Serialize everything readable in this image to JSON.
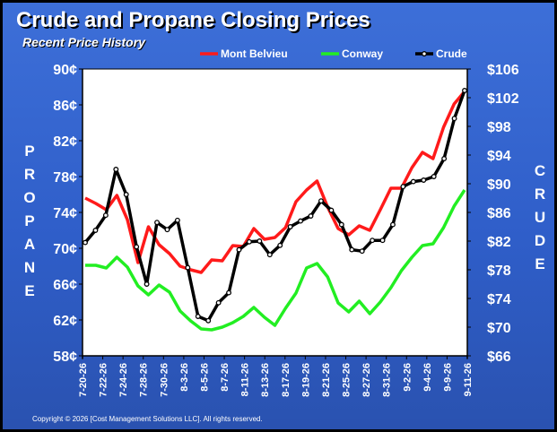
{
  "title": "Crude and Propane Closing Prices",
  "subtitle": "Recent Price History",
  "copyright": "Copyright © 2026 [Cost Management Solutions LLC].  All rights reserved.",
  "colors": {
    "mont_belvieu": "#ff1a1a",
    "conway": "#22ee22",
    "crude": "#000000",
    "plot_bg": "#ffffff",
    "text": "#ffffff"
  },
  "chart_data": {
    "type": "line",
    "left_axis_label": "PROPANE",
    "right_axis_label": "CRUDE",
    "left_ylim": [
      58,
      90
    ],
    "left_yticks": [
      "58¢",
      "62¢",
      "66¢",
      "70¢",
      "74¢",
      "78¢",
      "82¢",
      "86¢",
      "90¢"
    ],
    "right_ylim": [
      66,
      106
    ],
    "right_yticks": [
      "$66",
      "$70",
      "$74",
      "$78",
      "$82",
      "$86",
      "$90",
      "$94",
      "$98",
      "$102",
      "$106"
    ],
    "x_tick_labels": [
      "7-20-26",
      "7-22-26",
      "7-24-26",
      "7-28-26",
      "7-30-26",
      "8-3-26",
      "8-5-26",
      "8-7-26",
      "8-11-26",
      "8-13-26",
      "8-17-26",
      "8-19-26",
      "8-21-26",
      "8-25-26",
      "8-27-26",
      "8-31-26",
      "9-2-26",
      "9-4-26",
      "9-9-26",
      "9-11-26"
    ],
    "legend_position": "top",
    "grid": false,
    "series": [
      {
        "name": "Mont Belvieu",
        "axis": "left",
        "color": "#ff1a1a",
        "values": [
          75.6,
          75.0,
          74.3,
          75.9,
          73.2,
          68.4,
          72.4,
          70.4,
          69.4,
          68.0,
          67.6,
          67.3,
          68.7,
          68.6,
          70.3,
          70.2,
          72.2,
          71.0,
          71.2,
          72.3,
          75.2,
          76.5,
          77.5,
          74.6,
          72.2,
          71.5,
          72.5,
          72.0,
          74.3,
          76.7,
          76.7,
          79.0,
          80.7,
          80.0,
          83.5,
          86.1,
          87.5
        ]
      },
      {
        "name": "Conway",
        "axis": "left",
        "color": "#22ee22",
        "values": [
          68.1,
          68.1,
          67.8,
          69.0,
          67.9,
          65.8,
          64.8,
          65.9,
          65.1,
          63.0,
          61.9,
          61.0,
          60.9,
          61.2,
          61.7,
          62.4,
          63.4,
          62.3,
          61.4,
          63.3,
          65.0,
          67.8,
          68.3,
          66.8,
          63.9,
          62.9,
          64.1,
          62.7,
          64.0,
          65.6,
          67.5,
          69.0,
          70.3,
          70.5,
          72.3,
          74.7,
          76.5
        ]
      },
      {
        "name": "Crude",
        "axis": "right",
        "color": "#000000",
        "values": [
          81.8,
          83.5,
          85.6,
          92.0,
          88.5,
          81.2,
          76.0,
          84.6,
          83.6,
          84.9,
          78.3,
          71.5,
          70.9,
          73.4,
          74.8,
          80.8,
          81.9,
          82.0,
          80.1,
          81.4,
          84.0,
          84.8,
          85.5,
          87.6,
          86.3,
          84.3,
          80.8,
          80.6,
          82.1,
          82.1,
          84.3,
          89.6,
          90.3,
          90.5,
          91.0,
          93.5,
          99.1,
          103.0
        ]
      }
    ]
  }
}
